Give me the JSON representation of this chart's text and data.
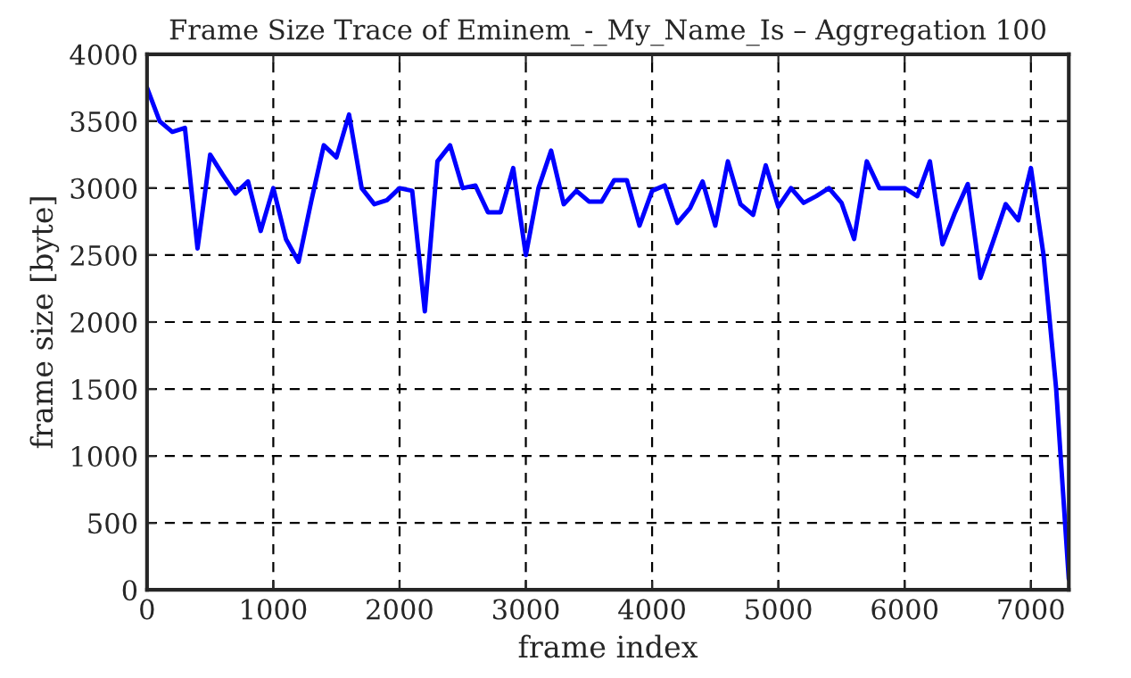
{
  "chart_data": {
    "type": "line",
    "title": "Frame Size Trace of Eminem_-_My_Name_Is – Aggregation 100",
    "xlabel": "frame index",
    "ylabel": "frame size [byte]",
    "x": [
      0,
      100,
      200,
      300,
      400,
      500,
      600,
      700,
      800,
      900,
      1000,
      1100,
      1200,
      1300,
      1400,
      1500,
      1600,
      1700,
      1800,
      1900,
      2000,
      2100,
      2200,
      2300,
      2400,
      2500,
      2600,
      2700,
      2800,
      2900,
      3000,
      3100,
      3200,
      3300,
      3400,
      3500,
      3600,
      3700,
      3800,
      3900,
      4000,
      4100,
      4200,
      4300,
      4400,
      4500,
      4600,
      4700,
      4800,
      4900,
      5000,
      5100,
      5200,
      5300,
      5400,
      5500,
      5600,
      5700,
      5800,
      5900,
      6000,
      6100,
      6200,
      6300,
      6400,
      6500,
      6600,
      6700,
      6800,
      6900,
      7000,
      7100,
      7200,
      7300
    ],
    "series": [
      {
        "color": "#0000ff",
        "values": [
          3750,
          3500,
          3420,
          3450,
          2550,
          3250,
          3100,
          2960,
          3050,
          2680,
          3000,
          2620,
          2450,
          2900,
          3320,
          3230,
          3550,
          3000,
          2880,
          2910,
          3000,
          2980,
          2080,
          3200,
          3320,
          3000,
          3020,
          2820,
          2820,
          3150,
          2500,
          3000,
          3280,
          2880,
          2980,
          2900,
          2900,
          3060,
          3060,
          2720,
          2980,
          3020,
          2740,
          2850,
          3050,
          2720,
          3200,
          2880,
          2800,
          3170,
          2860,
          3000,
          2890,
          2940,
          3000,
          2890,
          2620,
          3200,
          3000,
          3000,
          3000,
          2940,
          3200,
          2580,
          2820,
          3030,
          2330,
          2600,
          2880,
          2760,
          3150,
          2500,
          1500,
          80
        ]
      }
    ],
    "xlim": [
      0,
      7300
    ],
    "xticks": [
      0,
      1000,
      2000,
      3000,
      4000,
      5000,
      6000,
      7000
    ],
    "ylim": [
      0,
      4000
    ],
    "yticks": [
      0,
      500,
      1000,
      1500,
      2000,
      2500,
      3000,
      3500,
      4000
    ],
    "grid": true,
    "marker": "none",
    "line_style": "solid",
    "legend": false
  }
}
